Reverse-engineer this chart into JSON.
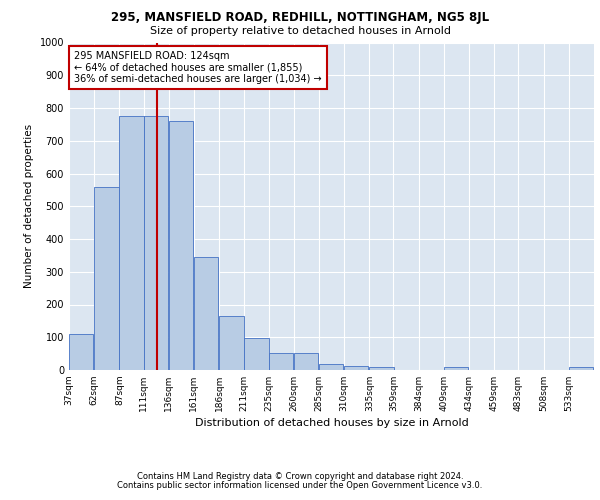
{
  "title1": "295, MANSFIELD ROAD, REDHILL, NOTTINGHAM, NG5 8JL",
  "title2": "Size of property relative to detached houses in Arnold",
  "xlabel": "Distribution of detached houses by size in Arnold",
  "ylabel": "Number of detached properties",
  "footer1": "Contains HM Land Registry data © Crown copyright and database right 2024.",
  "footer2": "Contains public sector information licensed under the Open Government Licence v3.0.",
  "annotation_title": "295 MANSFIELD ROAD: 124sqm",
  "annotation_line1": "← 64% of detached houses are smaller (1,855)",
  "annotation_line2": "36% of semi-detached houses are larger (1,034) →",
  "property_size_sqm": 124,
  "bin_starts": [
    37,
    62,
    87,
    111,
    136,
    161,
    186,
    211,
    235,
    260,
    285,
    310,
    335,
    359,
    384,
    409,
    434,
    459,
    483,
    508,
    533
  ],
  "bin_labels": [
    "37sqm",
    "62sqm",
    "87sqm",
    "111sqm",
    "136sqm",
    "161sqm",
    "186sqm",
    "211sqm",
    "235sqm",
    "260sqm",
    "285sqm",
    "310sqm",
    "335sqm",
    "359sqm",
    "384sqm",
    "409sqm",
    "434sqm",
    "459sqm",
    "483sqm",
    "508sqm",
    "533sqm"
  ],
  "bar_heights": [
    110,
    560,
    775,
    775,
    760,
    345,
    165,
    97,
    52,
    52,
    18,
    12,
    8,
    0,
    0,
    8,
    0,
    0,
    0,
    0,
    8
  ],
  "bar_color": "#b8cce4",
  "bar_edge_color": "#4472c4",
  "vline_color": "#c00000",
  "vline_x": 124,
  "annotation_box_color": "#ffffff",
  "annotation_box_edge_color": "#c00000",
  "bg_color": "#dce6f1",
  "ylim": [
    0,
    1000
  ],
  "yticks": [
    0,
    100,
    200,
    300,
    400,
    500,
    600,
    700,
    800,
    900,
    1000
  ],
  "title1_fontsize": 8.5,
  "title2_fontsize": 8,
  "ylabel_fontsize": 7.5,
  "xlabel_fontsize": 8,
  "tick_fontsize": 6.5,
  "footer_fontsize": 6.0,
  "annotation_fontsize": 7.0
}
